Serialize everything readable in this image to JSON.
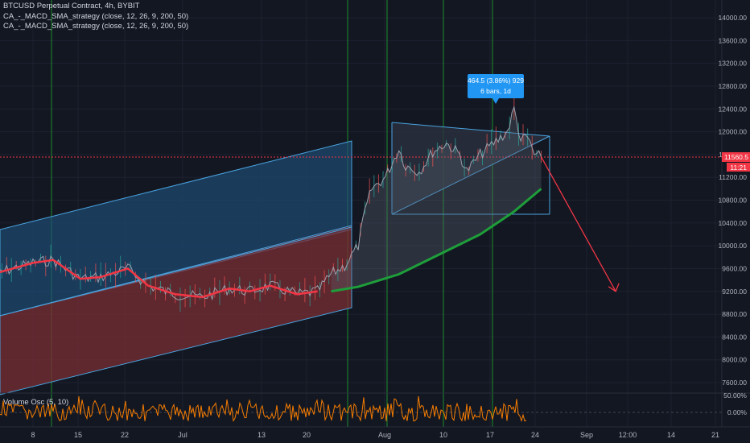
{
  "legend": {
    "symbol_line": "BTCUSD Perpetual Contract, 4h, BYBIT",
    "indicators": [
      "CA_-_MACD_SMA_strategy (close, 12, 26, 9, 200, 50)",
      "CA_-_MACD_SMA_strategy (close, 12, 26, 9, 200, 50)"
    ],
    "volume_label": "Volume Osc (5, 10)"
  },
  "measure": {
    "line1": "464.5 (3.86%) 929",
    "line2": "6 bars, 1d"
  },
  "price_axis": {
    "ticks": [
      "14000.00",
      "13600.00",
      "13200.00",
      "12800.00",
      "12400.00",
      "12000.00",
      "11600.00",
      "11200.00",
      "10800.00",
      "10400.00",
      "10000.00",
      "9600.00",
      "9200.00",
      "8800.00",
      "8400.00",
      "8000.00",
      "7600.00"
    ],
    "current_price_label": "11560.5",
    "countdown_label": "11:21"
  },
  "volume_axis": {
    "ticks": [
      "50.00%",
      "0.00%"
    ]
  },
  "time_axis": {
    "ticks": [
      "8",
      "15",
      "22",
      "Jul",
      "13",
      "20",
      "Aug",
      "10",
      "17",
      "24",
      "Sep",
      "12:00",
      "14",
      "21"
    ]
  },
  "colors": {
    "background": "#131722",
    "grid": "#1e2230",
    "price_line": "#f23645",
    "channel_blue": "#2962ff",
    "channel_red": "#f23645",
    "sma_green": "#1e9e3a",
    "measure_blue": "#2196f3",
    "volume_osc": "#f57c00",
    "signal_vertical": "#1b7a2b"
  },
  "chart_data": {
    "type": "candlestick",
    "title": "BTCUSD Perpetual Contract, 4h, BYBIT",
    "ylim": [
      7400,
      14300
    ],
    "current_price": 11560.5,
    "price_path": [
      [
        "Jun 2",
        9500
      ],
      [
        "Jun 8",
        9700
      ],
      [
        "Jun 11",
        9750
      ],
      [
        "Jun 15",
        9420
      ],
      [
        "Jun 18",
        9450
      ],
      [
        "Jun 22",
        9600
      ],
      [
        "Jun 25",
        9300
      ],
      [
        "Jun 29",
        9150
      ],
      [
        "Jul 3",
        9100
      ],
      [
        "Jul 7",
        9250
      ],
      [
        "Jul 10",
        9200
      ],
      [
        "Jul 13",
        9300
      ],
      [
        "Jul 17",
        9150
      ],
      [
        "Jul 20",
        9200
      ],
      [
        "Jul 22",
        9500
      ],
      [
        "Jul 24",
        9650
      ],
      [
        "Jul 26",
        10000
      ],
      [
        "Jul 27",
        10600
      ],
      [
        "Jul 28",
        11000
      ],
      [
        "Jul 30",
        11200
      ],
      [
        "Aug 1",
        11700
      ],
      [
        "Aug 2",
        11400
      ],
      [
        "Aug 4",
        11300
      ],
      [
        "Aug 6",
        11650
      ],
      [
        "Aug 8",
        11800
      ],
      [
        "Aug 10",
        11600
      ],
      [
        "Aug 11",
        11300
      ],
      [
        "Aug 13",
        11600
      ],
      [
        "Aug 15",
        11800
      ],
      [
        "Aug 17",
        12000
      ],
      [
        "Aug 18",
        12400
      ],
      [
        "Aug 19",
        11850
      ],
      [
        "Aug 20",
        11900
      ],
      [
        "Aug 21",
        11600
      ],
      [
        "Aug 22",
        11560
      ]
    ],
    "sma_200": [
      [
        "Jul 22",
        9200
      ],
      [
        "Jul 26",
        9280
      ],
      [
        "Aug 1",
        9500
      ],
      [
        "Aug 7",
        9850
      ],
      [
        "Aug 13",
        10200
      ],
      [
        "Aug 18",
        10600
      ],
      [
        "Aug 22",
        11000
      ]
    ],
    "projection": [
      [
        "Aug 22",
        11560
      ],
      [
        "Sep 2",
        9200
      ]
    ],
    "measure": {
      "change": 464.5,
      "percent": 3.86,
      "ticks": 929,
      "bars": 6,
      "span": "1d"
    },
    "volume_oscillator": {
      "ylabel": "Volume Osc (5, 10)",
      "ticks": [
        "50.00%",
        "0.00%"
      ]
    }
  }
}
